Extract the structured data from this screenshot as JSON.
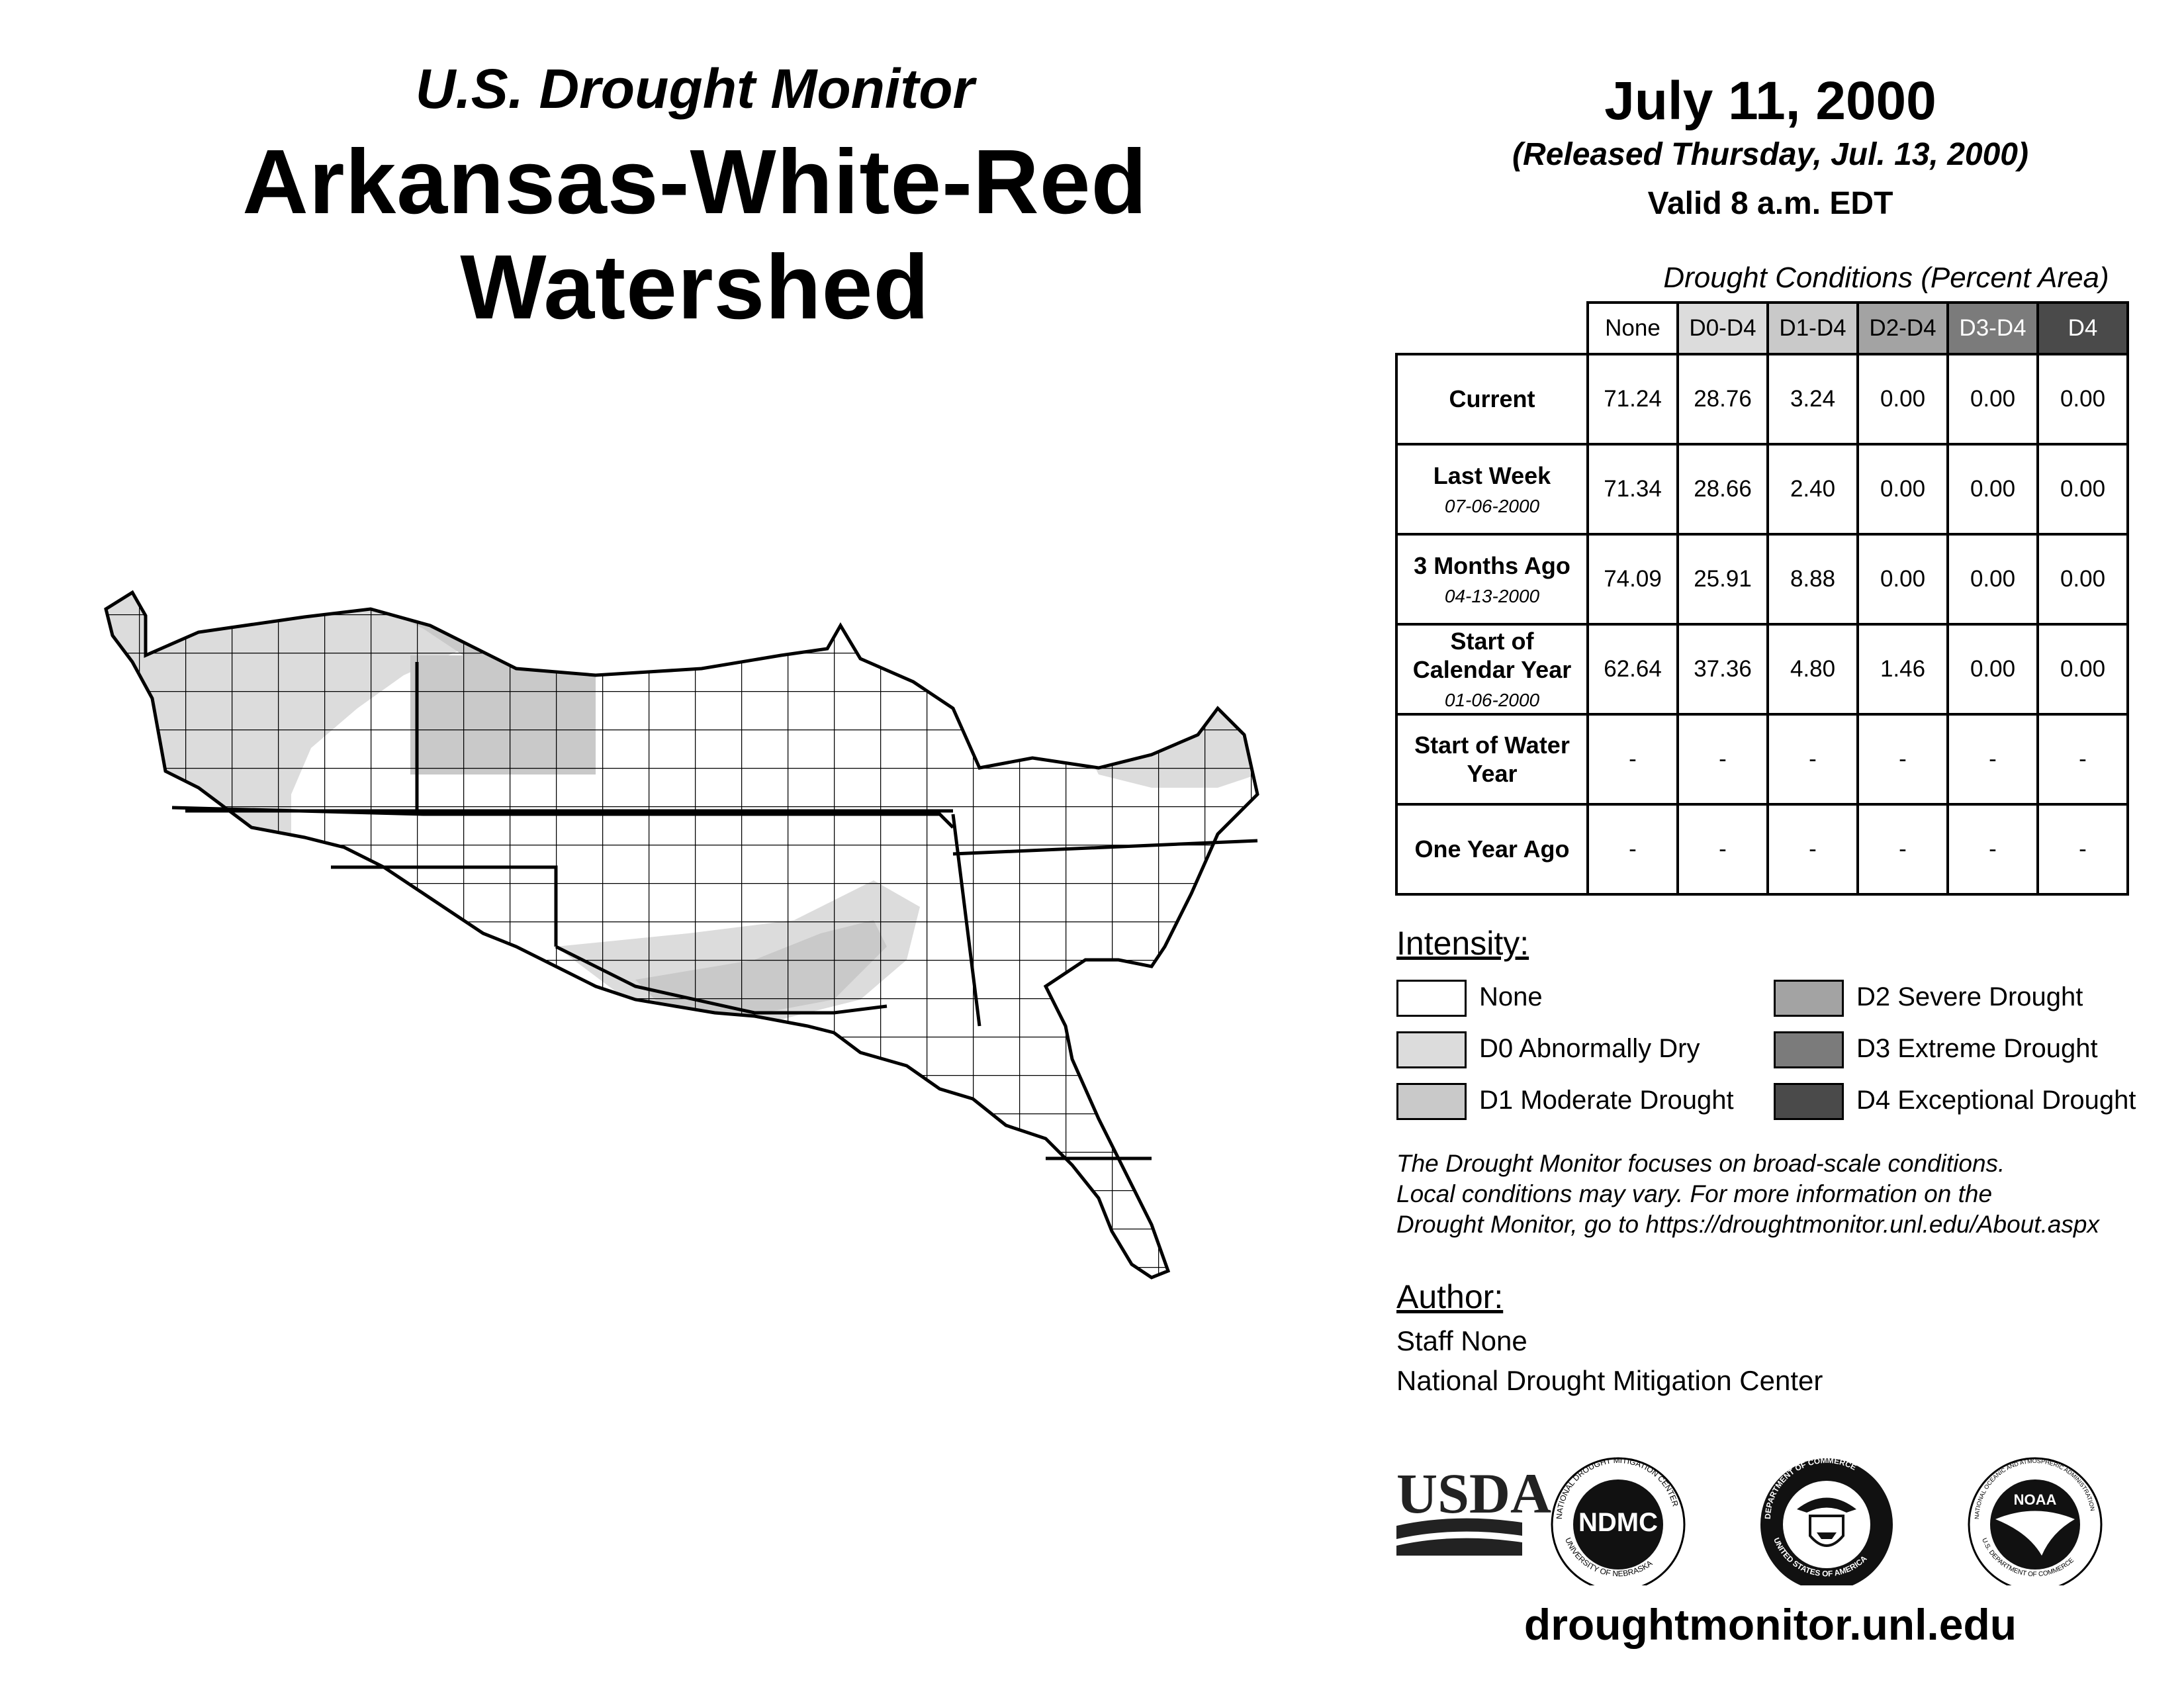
{
  "header": {
    "subtitle": "U.S. Drought Monitor",
    "title": "Arkansas-White-Red Watershed",
    "date": "July 11, 2000",
    "released": "(Released Thursday, Jul. 13, 2000)",
    "valid": "Valid 8 a.m. EDT"
  },
  "table": {
    "caption": "Drought Conditions (Percent Area)",
    "columns": [
      "None",
      "D0-D4",
      "D1-D4",
      "D2-D4",
      "D3-D4",
      "D4"
    ],
    "rows": [
      {
        "label": "Current",
        "date": "",
        "values": [
          "71.24",
          "28.76",
          "3.24",
          "0.00",
          "0.00",
          "0.00"
        ]
      },
      {
        "label": "Last Week",
        "date": "07-06-2000",
        "values": [
          "71.34",
          "28.66",
          "2.40",
          "0.00",
          "0.00",
          "0.00"
        ]
      },
      {
        "label": "3 Months Ago",
        "date": "04-13-2000",
        "values": [
          "74.09",
          "25.91",
          "8.88",
          "0.00",
          "0.00",
          "0.00"
        ]
      },
      {
        "label": "Start of Calendar Year",
        "date": "01-06-2000",
        "values": [
          "62.64",
          "37.36",
          "4.80",
          "1.46",
          "0.00",
          "0.00"
        ]
      },
      {
        "label": "Start of Water Year",
        "date": "",
        "values": [
          "-",
          "-",
          "-",
          "-",
          "-",
          "-"
        ]
      },
      {
        "label": "One Year Ago",
        "date": "",
        "values": [
          "-",
          "-",
          "-",
          "-",
          "-",
          "-"
        ]
      }
    ]
  },
  "legend": {
    "title": "Intensity:",
    "items": [
      {
        "label": "None",
        "color": "#ffffff"
      },
      {
        "label": "D0 Abnormally Dry",
        "color": "#dcdcdc"
      },
      {
        "label": "D1 Moderate Drought",
        "color": "#c9c9c9"
      },
      {
        "label": "D2 Severe Drought",
        "color": "#a3a3a3"
      },
      {
        "label": "D3 Extreme Drought",
        "color": "#7b7b7b"
      },
      {
        "label": "D4 Exceptional Drought",
        "color": "#4a4a4a"
      }
    ]
  },
  "disclaimer": {
    "line1": "The Drought Monitor focuses on broad-scale conditions.",
    "line2": "Local conditions may vary. For more information on the",
    "line3": "Drought Monitor, go to https://droughtmonitor.unl.edu/About.aspx"
  },
  "author": {
    "title": "Author:",
    "name": "Staff None",
    "org": "National Drought Mitigation Center"
  },
  "logos": {
    "usda": "USDA",
    "ndmc": "NDMC",
    "ndmc_ring_top": "NATIONAL DROUGHT MITIGATION CENTER",
    "ndmc_ring_bottom": "UNIVERSITY OF NEBRASKA",
    "doc_ring_top": "DEPARTMENT OF COMMERCE",
    "doc_ring_bottom": "UNITED STATES OF AMERICA",
    "noaa": "NOAA",
    "noaa_ring_top": "NATIONAL OCEANIC AND ATMOSPHERIC ADMINISTRATION",
    "noaa_ring_bottom": "U.S. DEPARTMENT OF COMMERCE"
  },
  "footer": {
    "url": "droughtmonitor.unl.edu"
  }
}
